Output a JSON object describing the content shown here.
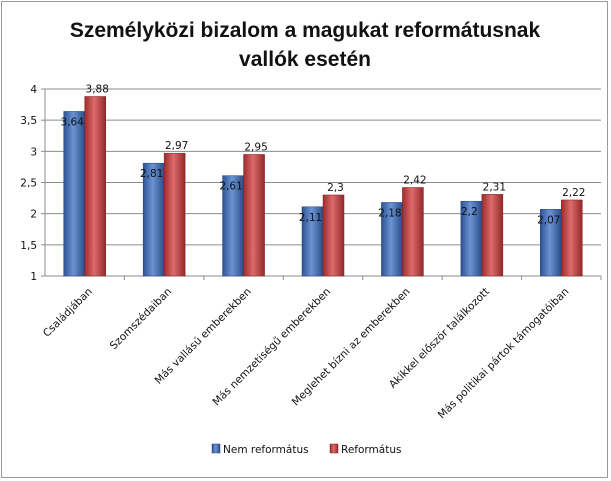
{
  "chart_data": {
    "type": "bar",
    "title_lines": [
      "Személyközi bizalom a magukat reformátusnak",
      "vallók esetén"
    ],
    "categories": [
      "Családjában",
      "Szomszédaiban",
      "Más vallású emberekben",
      "Más nemzetiségű emberekben",
      "Meglehet bízni az emberekben",
      "Akikkel először találkozott",
      "Más politikai pártok támogatóiban"
    ],
    "series": [
      {
        "name": "Nem református",
        "color": "#3a6fc4",
        "values": [
          3.64,
          2.81,
          2.61,
          2.11,
          2.18,
          2.2,
          2.07
        ],
        "labels": [
          "3,64",
          "2,81",
          "2,61",
          "2,11",
          "2,18",
          "2,2",
          "2,07"
        ]
      },
      {
        "name": "Református",
        "color": "#d23a3a",
        "values": [
          3.88,
          2.97,
          2.95,
          2.3,
          2.42,
          2.31,
          2.22
        ],
        "labels": [
          "3,88",
          "2,97",
          "2,95",
          "2,3",
          "2,42",
          "2,31",
          "2,22"
        ]
      }
    ],
    "ylim": [
      1,
      4
    ],
    "yticks": [
      1,
      1.5,
      2,
      2.5,
      3,
      3.5,
      4
    ],
    "ytick_labels": [
      "1",
      "1,5",
      "2",
      "2,5",
      "3",
      "3,5",
      "4"
    ],
    "grid": true,
    "legend_position": "bottom"
  }
}
